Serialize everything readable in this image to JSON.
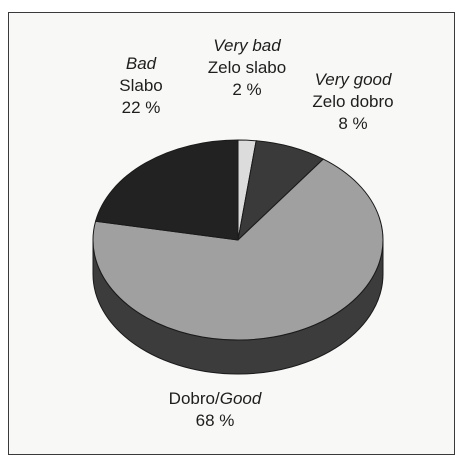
{
  "chart_data": {
    "type": "pie",
    "style": "3d",
    "slices": [
      {
        "label_en": "Very bad",
        "label_sl": "Zelo slabo",
        "value": 2,
        "value_text": "2 %",
        "color": "#dcdcdc"
      },
      {
        "label_en": "Very good",
        "label_sl": "Zelo dobro",
        "value": 8,
        "value_text": "8 %",
        "color": "#3a3a3a"
      },
      {
        "label_en": "Good",
        "label_sl": "Dobro",
        "value": 68,
        "value_text": "68 %",
        "color": "#a0a0a0"
      },
      {
        "label_en": "Bad",
        "label_sl": "Slabo",
        "value": 22,
        "value_text": "22 %",
        "color": "#222222"
      }
    ],
    "side_color": "#3c3c3c"
  }
}
